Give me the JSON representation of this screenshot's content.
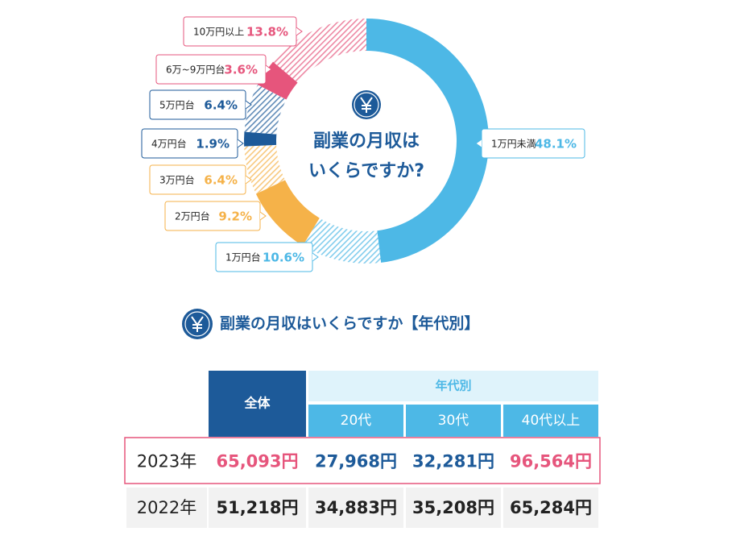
{
  "chart_data": {
    "type": "pie",
    "donut": true,
    "title": [
      "副業の月収は",
      "いくらですか?"
    ],
    "categories": [
      "1万円未満",
      "1万円台",
      "2万円台",
      "3万円台",
      "4万円台",
      "5万円台",
      "6万~9万円台",
      "10万円以上"
    ],
    "values": [
      48.1,
      10.6,
      9.2,
      6.4,
      1.9,
      6.4,
      3.6,
      13.8
    ],
    "value_labels": [
      "48.1%",
      "10.6%",
      "9.2%",
      "6.4%",
      "1.9%",
      "6.4%",
      "3.6%",
      "13.8%"
    ],
    "colors": [
      "#4db8e6",
      "#4db8e6",
      "#f5b249",
      "#f5b249",
      "#1d5a99",
      "#1d5a99",
      "#e6557c",
      "#e6557c"
    ],
    "patterns": [
      "solid",
      "hatched",
      "solid",
      "hatched",
      "solid",
      "hatched",
      "solid",
      "hatched"
    ]
  },
  "section": {
    "title": "副業の月収はいくらですか【年代別】",
    "table": {
      "header": {
        "total": "全体",
        "group": "年代別",
        "columns": [
          "20代",
          "30代",
          "40代以上"
        ]
      },
      "rows": [
        [
          "2023年",
          "65,093円",
          "27,968円",
          "32,281円",
          "96,564円"
        ],
        [
          "2022年",
          "51,218円",
          "34,883円",
          "35,208円",
          "65,284円"
        ]
      ]
    }
  }
}
